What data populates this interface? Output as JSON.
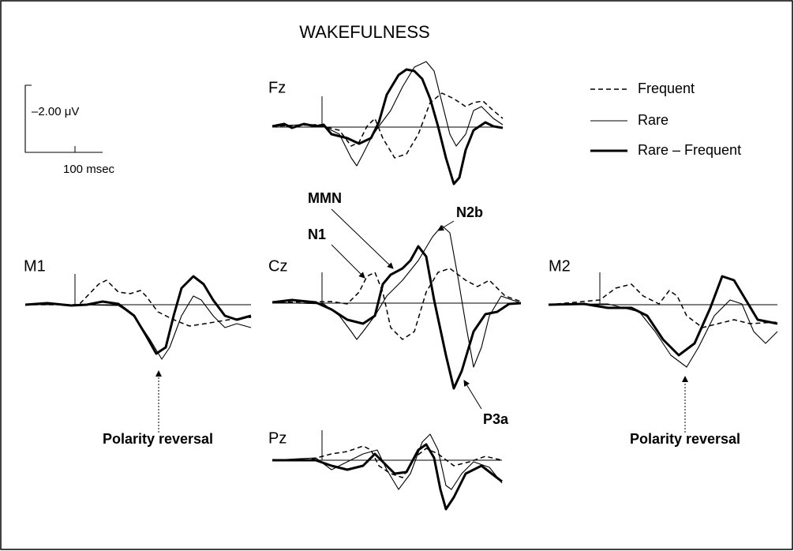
{
  "title": "WAKEFULNESS",
  "scale_bar": {
    "amplitude": "–2.00 μV",
    "time": "100 msec"
  },
  "legend": [
    "Frequent",
    "Rare",
    "Rare – Frequent"
  ],
  "electrodes": [
    "Fz",
    "M1",
    "Cz",
    "M2",
    "Pz"
  ],
  "annotations": {
    "mmn": "MMN",
    "n2b": "N2b",
    "n1": "N1",
    "p3a": "P3a",
    "polarity_left": "Polarity reversal",
    "polarity_right": "Polarity reversal"
  }
}
